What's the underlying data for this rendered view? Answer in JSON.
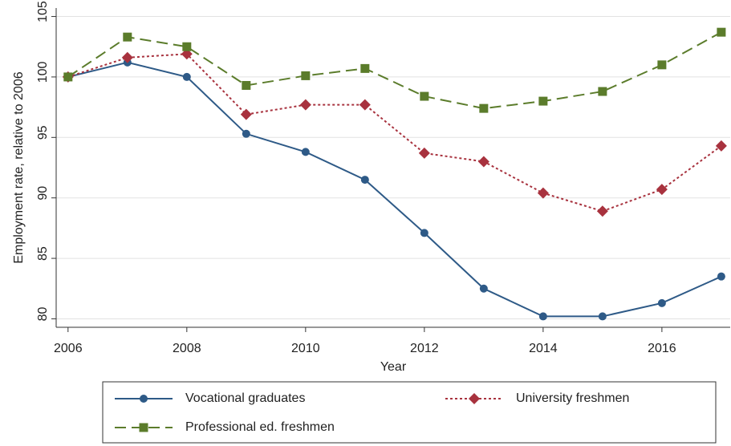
{
  "chart_data": {
    "type": "line",
    "x_label": "Year",
    "y_label": "Employment rate, relative to 2006",
    "x": [
      2006,
      2007,
      2008,
      2009,
      2010,
      2011,
      2012,
      2013,
      2014,
      2015,
      2016,
      2017
    ],
    "series": [
      {
        "name": "Vocational graduates",
        "color": "#2e5a87",
        "marker": "circle",
        "dash": "solid",
        "values": [
          100,
          101.2,
          100.0,
          95.3,
          93.8,
          91.5,
          87.1,
          82.5,
          80.2,
          80.2,
          81.3,
          83.5
        ]
      },
      {
        "name": "University freshmen",
        "color": "#a8323e",
        "marker": "diamond",
        "dash": "dotted",
        "values": [
          100,
          101.6,
          101.9,
          96.9,
          97.7,
          97.7,
          93.7,
          93.0,
          90.4,
          88.9,
          90.7,
          94.3
        ]
      },
      {
        "name": "Professional ed. freshmen",
        "color": "#5b7c2b",
        "marker": "square",
        "dash": "dashed",
        "values": [
          100,
          103.3,
          102.5,
          99.3,
          100.1,
          100.7,
          98.4,
          97.4,
          98.0,
          98.8,
          101.0,
          103.7
        ]
      }
    ],
    "xlim": [
      2005.8,
      2017.15
    ],
    "xticks": [
      2006,
      2008,
      2010,
      2012,
      2014,
      2016
    ],
    "ylim": [
      79.3,
      105.7
    ],
    "yticks": [
      80,
      85,
      90,
      95,
      100,
      105
    ],
    "grid": true,
    "legend": "bottom"
  }
}
